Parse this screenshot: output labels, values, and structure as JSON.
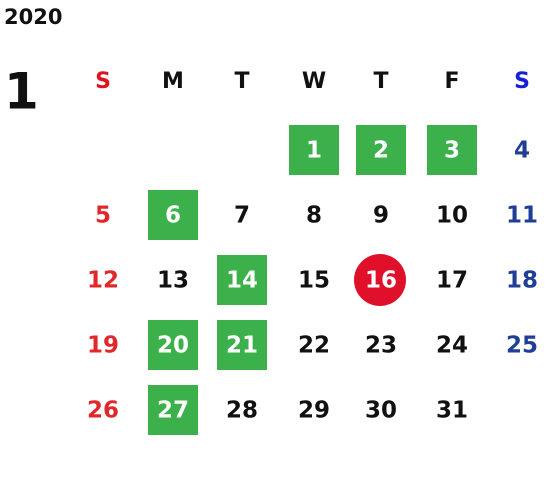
{
  "year": "2020",
  "month": "1",
  "weekdays": [
    {
      "label": "S",
      "color": "#e0141e"
    },
    {
      "label": "M",
      "color": "#111111"
    },
    {
      "label": "T",
      "color": "#111111"
    },
    {
      "label": "W",
      "color": "#111111"
    },
    {
      "label": "T",
      "color": "#111111"
    },
    {
      "label": "F",
      "color": "#111111"
    },
    {
      "label": "S",
      "color": "#1420d8"
    }
  ],
  "day_colors": [
    "#e0282a",
    "#111111",
    "#111111",
    "#111111",
    "#111111",
    "#111111",
    "#1f3e96"
  ],
  "weeks": [
    [
      null,
      null,
      null,
      {
        "day": 1,
        "highlight": "#3bb04b"
      },
      {
        "day": 2,
        "highlight": "#3bb04b"
      },
      {
        "day": 3,
        "highlight": "#3bb04b"
      },
      {
        "day": 4
      }
    ],
    [
      {
        "day": 5
      },
      {
        "day": 6,
        "highlight": "#3bb04b"
      },
      {
        "day": 7
      },
      {
        "day": 8
      },
      {
        "day": 9
      },
      {
        "day": 10
      },
      {
        "day": 11
      }
    ],
    [
      {
        "day": 12
      },
      {
        "day": 13
      },
      {
        "day": 14,
        "highlight": "#3bb04b"
      },
      {
        "day": 15
      },
      {
        "day": 16,
        "today": "#e0102a"
      },
      {
        "day": 17
      },
      {
        "day": 18
      }
    ],
    [
      {
        "day": 19
      },
      {
        "day": 20,
        "highlight": "#3bb04b"
      },
      {
        "day": 21,
        "highlight": "#3bb04b"
      },
      {
        "day": 22
      },
      {
        "day": 23
      },
      {
        "day": 24
      },
      {
        "day": 25
      }
    ],
    [
      {
        "day": 26
      },
      {
        "day": 27,
        "highlight": "#3bb04b"
      },
      {
        "day": 28
      },
      {
        "day": 29
      },
      {
        "day": 30
      },
      {
        "day": 31
      },
      null
    ]
  ]
}
